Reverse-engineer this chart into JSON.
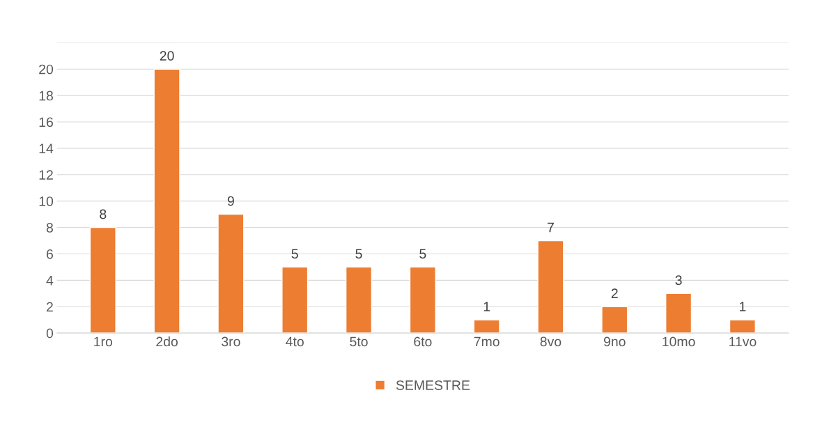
{
  "chart_data": {
    "type": "bar",
    "categories": [
      "1ro",
      "2do",
      "3ro",
      "4to",
      "5to",
      "6to",
      "7mo",
      "8vo",
      "9no",
      "10mo",
      "11vo"
    ],
    "series": [
      {
        "name": "SEMESTRE",
        "color": "#ed7d31",
        "values": [
          8,
          20,
          9,
          5,
          5,
          5,
          1,
          7,
          2,
          3,
          1
        ]
      }
    ],
    "ylim": [
      0,
      22
    ],
    "yticks": [
      0,
      2,
      4,
      6,
      8,
      10,
      12,
      14,
      16,
      18,
      20,
      {
        "value": 22,
        "label": null
      }
    ],
    "grid": "y",
    "legend": "bottom",
    "data_labels": true
  }
}
